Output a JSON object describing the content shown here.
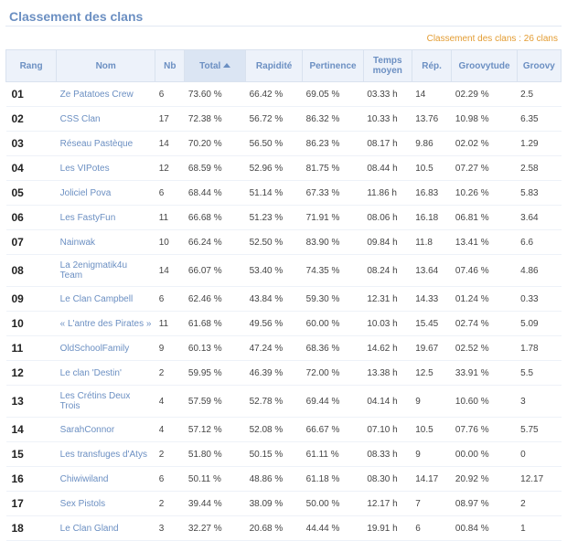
{
  "title": "Classement des clans",
  "subinfo": "Classement des clans : 26 clans",
  "colors": {
    "heading": "#6b8fc2",
    "subinfo": "#e39c32",
    "header_bg": "#edf2fa",
    "header_sorted_bg": "#dbe5f3",
    "header_border": "#d9e2ef",
    "row_border": "#eef2f8"
  },
  "columns": [
    {
      "key": "rang",
      "label": "Rang",
      "sorted": false
    },
    {
      "key": "nom",
      "label": "Nom",
      "sorted": false
    },
    {
      "key": "nb",
      "label": "Nb",
      "sorted": false
    },
    {
      "key": "total",
      "label": "Total",
      "sorted": true
    },
    {
      "key": "rapidite",
      "label": "Rapidité",
      "sorted": false
    },
    {
      "key": "pertinence",
      "label": "Pertinence",
      "sorted": false
    },
    {
      "key": "temps",
      "label": "Temps moyen",
      "sorted": false
    },
    {
      "key": "rep",
      "label": "Rép.",
      "sorted": false
    },
    {
      "key": "groovytude",
      "label": "Groovytude",
      "sorted": false
    },
    {
      "key": "groovy",
      "label": "Groovy",
      "sorted": false
    }
  ],
  "rows": [
    {
      "rang": "01",
      "nom": "Ze Patatoes Crew",
      "nb": "6",
      "total": "73.60 %",
      "rapidite": "66.42 %",
      "pertinence": "69.05 %",
      "temps": "03.33 h",
      "rep": "14",
      "groovytude": "02.29 %",
      "groovy": "2.5"
    },
    {
      "rang": "02",
      "nom": "CSS Clan",
      "nb": "17",
      "total": "72.38 %",
      "rapidite": "56.72 %",
      "pertinence": "86.32 %",
      "temps": "10.33 h",
      "rep": "13.76",
      "groovytude": "10.98 %",
      "groovy": "6.35"
    },
    {
      "rang": "03",
      "nom": "Réseau Pastèque",
      "nb": "14",
      "total": "70.20 %",
      "rapidite": "56.50 %",
      "pertinence": "86.23 %",
      "temps": "08.17 h",
      "rep": "9.86",
      "groovytude": "02.02 %",
      "groovy": "1.29"
    },
    {
      "rang": "04",
      "nom": "Les VIPotes",
      "nb": "12",
      "total": "68.59 %",
      "rapidite": "52.96 %",
      "pertinence": "81.75 %",
      "temps": "08.44 h",
      "rep": "10.5",
      "groovytude": "07.27 %",
      "groovy": "2.58"
    },
    {
      "rang": "05",
      "nom": "Joliciel Pova",
      "nb": "6",
      "total": "68.44 %",
      "rapidite": "51.14 %",
      "pertinence": "67.33 %",
      "temps": "11.86 h",
      "rep": "16.83",
      "groovytude": "10.26 %",
      "groovy": "5.83"
    },
    {
      "rang": "06",
      "nom": "Les FastyFun",
      "nb": "11",
      "total": "66.68 %",
      "rapidite": "51.23 %",
      "pertinence": "71.91 %",
      "temps": "08.06 h",
      "rep": "16.18",
      "groovytude": "06.81 %",
      "groovy": "3.64"
    },
    {
      "rang": "07",
      "nom": "Nainwak",
      "nb": "10",
      "total": "66.24 %",
      "rapidite": "52.50 %",
      "pertinence": "83.90 %",
      "temps": "09.84 h",
      "rep": "11.8",
      "groovytude": "13.41 %",
      "groovy": "6.6"
    },
    {
      "rang": "08",
      "nom": "La 2enigmatik4u Team",
      "nb": "14",
      "total": "66.07 %",
      "rapidite": "53.40 %",
      "pertinence": "74.35 %",
      "temps": "08.24 h",
      "rep": "13.64",
      "groovytude": "07.46 %",
      "groovy": "4.86"
    },
    {
      "rang": "09",
      "nom": "Le Clan Campbell",
      "nb": "6",
      "total": "62.46 %",
      "rapidite": "43.84 %",
      "pertinence": "59.30 %",
      "temps": "12.31 h",
      "rep": "14.33",
      "groovytude": "01.24 %",
      "groovy": "0.33"
    },
    {
      "rang": "10",
      "nom": "« L'antre des Pirates »",
      "nb": "11",
      "total": "61.68 %",
      "rapidite": "49.56 %",
      "pertinence": "60.00 %",
      "temps": "10.03 h",
      "rep": "15.45",
      "groovytude": "02.74 %",
      "groovy": "5.09"
    },
    {
      "rang": "11",
      "nom": "OldSchoolFamily",
      "nb": "9",
      "total": "60.13 %",
      "rapidite": "47.24 %",
      "pertinence": "68.36 %",
      "temps": "14.62 h",
      "rep": "19.67",
      "groovytude": "02.52 %",
      "groovy": "1.78"
    },
    {
      "rang": "12",
      "nom": "Le clan 'Destin'",
      "nb": "2",
      "total": "59.95 %",
      "rapidite": "46.39 %",
      "pertinence": "72.00 %",
      "temps": "13.38 h",
      "rep": "12.5",
      "groovytude": "33.91 %",
      "groovy": "5.5"
    },
    {
      "rang": "13",
      "nom": "Les Crétins Deux Trois",
      "nb": "4",
      "total": "57.59 %",
      "rapidite": "52.78 %",
      "pertinence": "69.44 %",
      "temps": "04.14 h",
      "rep": "9",
      "groovytude": "10.60 %",
      "groovy": "3"
    },
    {
      "rang": "14",
      "nom": "SarahConnor",
      "nb": "4",
      "total": "57.12 %",
      "rapidite": "52.08 %",
      "pertinence": "66.67 %",
      "temps": "07.10 h",
      "rep": "10.5",
      "groovytude": "07.76 %",
      "groovy": "5.75"
    },
    {
      "rang": "15",
      "nom": "Les transfuges d'Atys",
      "nb": "2",
      "total": "51.80 %",
      "rapidite": "50.15 %",
      "pertinence": "61.11 %",
      "temps": "08.33 h",
      "rep": "9",
      "groovytude": "00.00 %",
      "groovy": "0"
    },
    {
      "rang": "16",
      "nom": "Chiwiwiland",
      "nb": "6",
      "total": "50.11 %",
      "rapidite": "48.86 %",
      "pertinence": "61.18 %",
      "temps": "08.30 h",
      "rep": "14.17",
      "groovytude": "20.92 %",
      "groovy": "12.17"
    },
    {
      "rang": "17",
      "nom": "Sex Pistols",
      "nb": "2",
      "total": "39.44 %",
      "rapidite": "38.09 %",
      "pertinence": "50.00 %",
      "temps": "12.17 h",
      "rep": "7",
      "groovytude": "08.97 %",
      "groovy": "2"
    },
    {
      "rang": "18",
      "nom": "Le Clan Gland",
      "nb": "3",
      "total": "32.27 %",
      "rapidite": "20.68 %",
      "pertinence": "44.44 %",
      "temps": "19.91 h",
      "rep": "6",
      "groovytude": "00.84 %",
      "groovy": "1"
    }
  ]
}
